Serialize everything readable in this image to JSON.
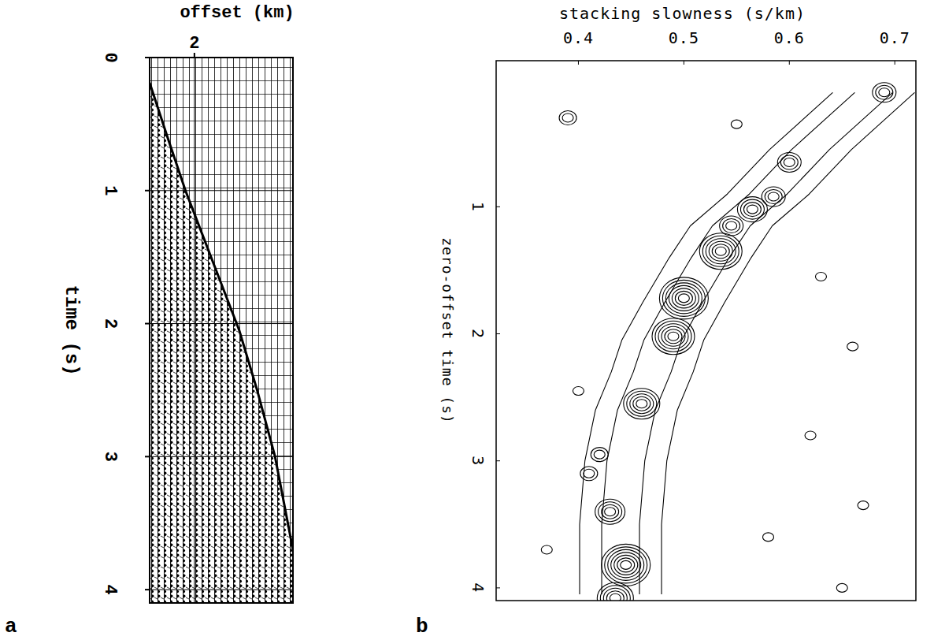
{
  "chart_data": [
    {
      "type": "seismic_gather",
      "panel_label": "a",
      "x_label": "offset (km)",
      "y_label": "time (s)",
      "xlim": [
        1.0,
        4.2
      ],
      "ylim": [
        0,
        4.1
      ],
      "xticks": [
        2
      ],
      "yticks": [
        0,
        1,
        2,
        3,
        4
      ],
      "grid": true,
      "x": [
        1.0,
        1.4,
        1.8,
        2.2,
        2.6,
        3.0,
        3.4,
        3.8,
        4.2
      ],
      "values": [
        0.19,
        0.6,
        1.0,
        1.35,
        1.7,
        2.05,
        2.5,
        3.0,
        3.7
      ]
    },
    {
      "type": "contour",
      "panel_label": "b",
      "x_label": "stacking slowness (s/km)",
      "y_label": "zero-offset time (s)",
      "xlim": [
        0.322,
        0.72
      ],
      "ylim": [
        -0.15,
        4.1
      ],
      "xticks": [
        0.4,
        0.5,
        0.6,
        0.7
      ],
      "yticks": [
        1,
        2,
        3,
        4
      ],
      "grid": false,
      "ridge": {
        "x": [
          0.68,
          0.62,
          0.58,
          0.545,
          0.525,
          0.5,
          0.48,
          0.47,
          0.455,
          0.445,
          0.44,
          0.44
        ],
        "y": [
          0.1,
          0.55,
          0.9,
          1.15,
          1.4,
          1.75,
          2.05,
          2.3,
          2.6,
          3.0,
          3.5,
          4.05
        ]
      },
      "peaks": {
        "x": [
          0.69,
          0.6,
          0.585,
          0.565,
          0.545,
          0.535,
          0.5,
          0.49,
          0.46,
          0.43,
          0.445,
          0.435,
          0.39,
          0.55,
          0.63,
          0.66,
          0.4,
          0.62,
          0.67,
          0.37,
          0.41,
          0.58,
          0.65,
          0.42
        ],
        "y": [
          0.1,
          0.65,
          0.92,
          1.02,
          1.15,
          1.35,
          1.72,
          2.02,
          2.55,
          3.4,
          3.82,
          4.08,
          0.3,
          0.35,
          1.55,
          2.1,
          2.45,
          2.8,
          3.35,
          3.7,
          3.1,
          3.6,
          4.0,
          2.95
        ],
        "levels": [
          3,
          3,
          3,
          4,
          3,
          6,
          7,
          6,
          5,
          4,
          7,
          5,
          2,
          1,
          1,
          1,
          1,
          1,
          1,
          1,
          2,
          1,
          1,
          2
        ]
      }
    }
  ]
}
